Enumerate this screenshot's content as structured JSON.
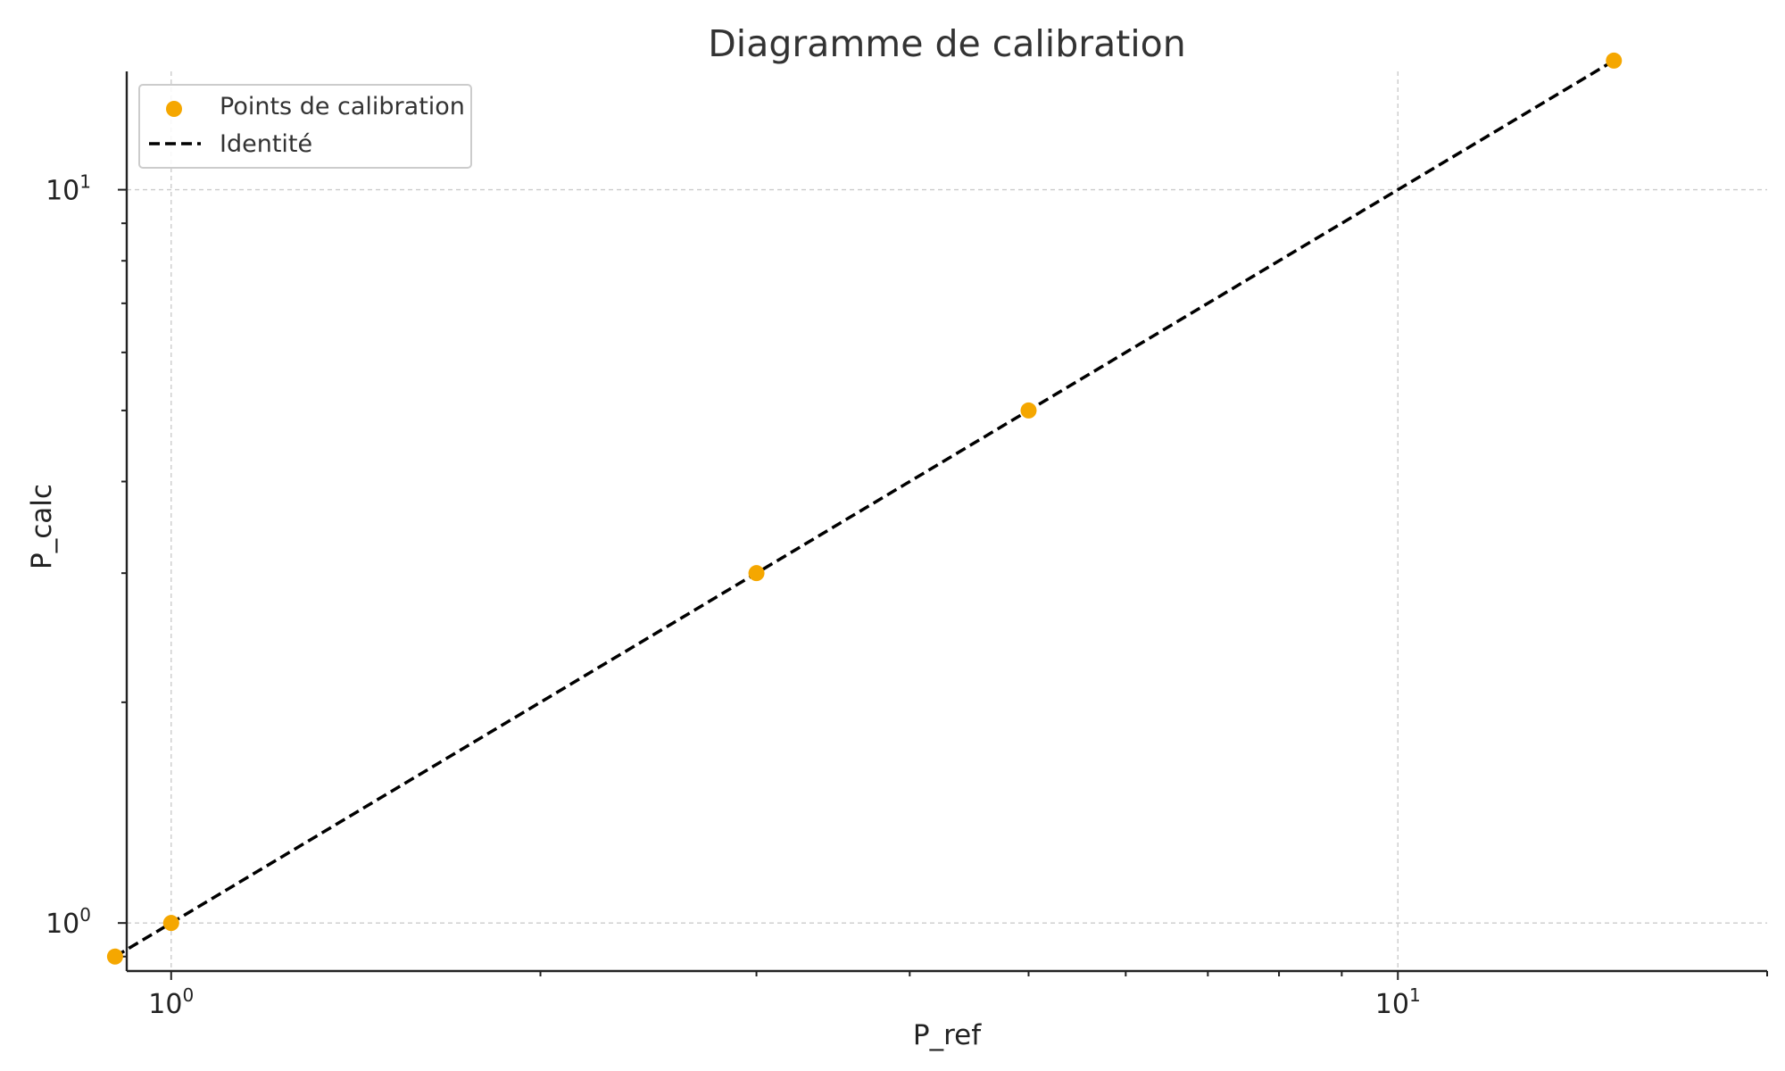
{
  "chart_data": {
    "type": "scatter",
    "title": "Diagramme de calibration",
    "xlabel": "P_ref",
    "ylabel": "P_calc",
    "xscale": "log",
    "yscale": "log",
    "xlim": [
      0.92,
      20
    ],
    "ylim": [
      0.86,
      14.5
    ],
    "grid": true,
    "legend_position": "top-left",
    "x_major_ticks": [
      {
        "value": 1,
        "base": "10",
        "exponent": "0"
      },
      {
        "value": 10,
        "base": "10",
        "exponent": "1"
      }
    ],
    "y_major_ticks": [
      {
        "value": 1,
        "base": "10",
        "exponent": "0"
      },
      {
        "value": 10,
        "base": "10",
        "exponent": "1"
      }
    ],
    "series": [
      {
        "name": "Points de calibration",
        "kind": "scatter",
        "color": "#F5A700",
        "x": [
          0.9,
          1,
          3,
          5,
          15
        ],
        "y": [
          0.9,
          1,
          3,
          5,
          15
        ]
      },
      {
        "name": "Identité",
        "kind": "line",
        "style": "dashed",
        "color": "#000000",
        "x": [
          0.9,
          15
        ],
        "y": [
          0.9,
          15
        ]
      }
    ]
  }
}
